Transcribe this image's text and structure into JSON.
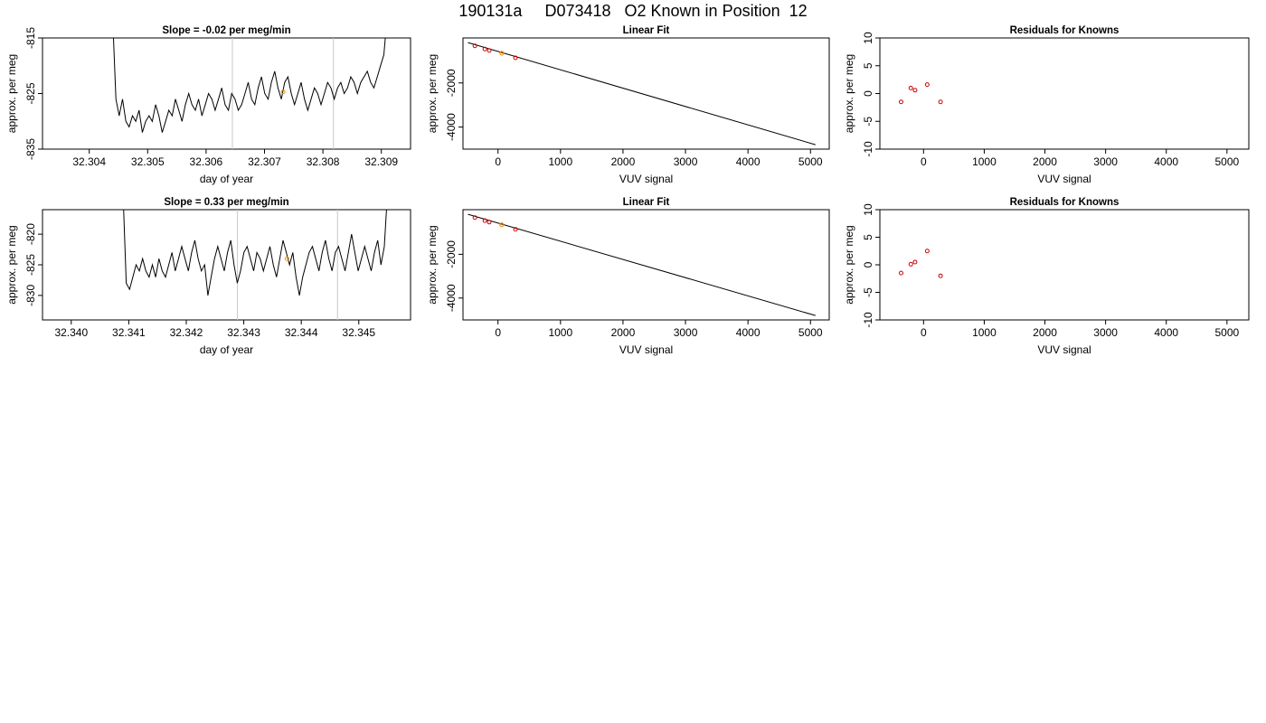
{
  "page": {
    "title": "190131a     D073418   O2 Known in Position  12"
  },
  "chart_data": [
    {
      "type": "line",
      "title": "Slope =  -0.02  per meg/min",
      "xlabel": "day of year",
      "ylabel": "approx. per meg",
      "xlim": [
        32.3032,
        32.3095
      ],
      "ylim": [
        -835,
        -815
      ],
      "xticks": [
        32.304,
        32.305,
        32.306,
        32.307,
        32.308,
        32.309
      ],
      "xtick_labels": [
        "32.304",
        "32.305",
        "32.306",
        "32.307",
        "32.308",
        "32.309"
      ],
      "yticks": [
        -815,
        -825,
        -835
      ],
      "ytick_labels": [
        "-815",
        "-825",
        "-835"
      ],
      "grid": false,
      "vlines": [
        32.30645,
        32.30818
      ],
      "series": [
        {
          "trace_start": 32.3044,
          "trace_end": 32.3091,
          "values": [
            -811,
            -826,
            -829,
            -826,
            -830,
            -831,
            -829,
            -830,
            -828,
            -832,
            -830,
            -829,
            -830,
            -827,
            -829,
            -832,
            -830,
            -828,
            -829,
            -826,
            -828,
            -830,
            -827,
            -825,
            -827,
            -828,
            -826,
            -829,
            -827,
            -825,
            -826,
            -828,
            -826,
            -824,
            -827,
            -828,
            -825,
            -826,
            -828,
            -827,
            -825,
            -823,
            -826,
            -827,
            -824,
            -822,
            -825,
            -826,
            -823,
            -821,
            -824,
            -826,
            -823,
            -822,
            -825,
            -827,
            -825,
            -823,
            -826,
            -828,
            -826,
            -824,
            -825,
            -827,
            -825,
            -823,
            -824,
            -826,
            -824,
            -823,
            -825,
            -824,
            -822,
            -823,
            -825,
            -823,
            -822,
            -821,
            -823,
            -824,
            -822,
            -820,
            -818,
            -811
          ]
        }
      ],
      "marker": {
        "x": 32.30732,
        "y": -824.7,
        "color": "#ff8c00"
      }
    },
    {
      "type": "scatter",
      "title": "Linear Fit",
      "xlabel": "VUV signal",
      "ylabel": "approx. per meg",
      "xlim": [
        -560,
        5300
      ],
      "ylim": [
        -5000,
        40
      ],
      "xticks": [
        0,
        1000,
        2000,
        3000,
        4000,
        5000
      ],
      "xtick_labels": [
        "0",
        "1000",
        "2000",
        "3000",
        "4000",
        "5000"
      ],
      "yticks": [
        -2000,
        -4000
      ],
      "ytick_labels": [
        "-2000",
        "-4000"
      ],
      "grid": false,
      "fit_line": [
        {
          "x": -480,
          "y": -170
        },
        {
          "x": 5080,
          "y": -4800
        }
      ],
      "series": [
        {
          "x": [
            -370,
            -210,
            -140,
            280
          ],
          "y": [
            -320,
            -460,
            -530,
            -860
          ],
          "color": "#cc0000"
        }
      ],
      "highlight": {
        "x": 60,
        "y": -650,
        "color": "#ff8c00"
      }
    },
    {
      "type": "scatter",
      "title": "Residuals for Knowns",
      "xlabel": "VUV signal",
      "ylabel": "approx. per meg",
      "xlim": [
        -720,
        5360
      ],
      "ylim": [
        -10,
        10
      ],
      "xticks": [
        0,
        1000,
        2000,
        3000,
        4000,
        5000
      ],
      "xtick_labels": [
        "0",
        "1000",
        "2000",
        "3000",
        "4000",
        "5000"
      ],
      "yticks": [
        10,
        5,
        0,
        -5,
        -10
      ],
      "ytick_labels": [
        "10",
        "5",
        "0",
        "-5",
        "-10"
      ],
      "grid": false,
      "series": [
        {
          "x": [
            -370,
            -210,
            -140,
            60,
            280
          ],
          "y": [
            -1.5,
            1.0,
            0.6,
            1.6,
            -1.5
          ],
          "color": "#cc0000"
        }
      ]
    },
    {
      "type": "line",
      "title": "Slope =  0.33  per meg/min",
      "xlabel": "day of year",
      "ylabel": "approx. per meg",
      "xlim": [
        32.3395,
        32.3459
      ],
      "ylim": [
        -834,
        -816
      ],
      "xticks": [
        32.34,
        32.341,
        32.342,
        32.343,
        32.344,
        32.345
      ],
      "xtick_labels": [
        "32.340",
        "32.341",
        "32.342",
        "32.343",
        "32.344",
        "32.345"
      ],
      "yticks": [
        -820,
        -825,
        -830
      ],
      "ytick_labels": [
        "-820",
        "-825",
        "-830"
      ],
      "grid": false,
      "vlines": [
        32.34289,
        32.34463
      ],
      "series": [
        {
          "trace_start": 32.3409,
          "trace_end": 32.3455,
          "values": [
            -813,
            -828,
            -829,
            -827,
            -825,
            -826,
            -824,
            -826,
            -827,
            -825,
            -827,
            -824,
            -826,
            -827,
            -825,
            -823,
            -826,
            -824,
            -822,
            -824,
            -826,
            -823,
            -821,
            -824,
            -826,
            -825,
            -830,
            -827,
            -824,
            -822,
            -824,
            -826,
            -823,
            -821,
            -825,
            -828,
            -826,
            -823,
            -822,
            -824,
            -826,
            -823,
            -824,
            -826,
            -824,
            -822,
            -825,
            -827,
            -824,
            -821,
            -823,
            -825,
            -823,
            -827,
            -830,
            -827,
            -825,
            -823,
            -822,
            -824,
            -826,
            -823,
            -821,
            -824,
            -826,
            -823,
            -822,
            -824,
            -826,
            -823,
            -820,
            -823,
            -826,
            -824,
            -822,
            -824,
            -826,
            -823,
            -821,
            -825,
            -822,
            -813
          ]
        }
      ],
      "marker": {
        "x": 32.34375,
        "y": -824.0,
        "color": "#ff8c00"
      }
    },
    {
      "type": "scatter",
      "title": "Linear Fit",
      "xlabel": "VUV signal",
      "ylabel": "approx. per meg",
      "xlim": [
        -560,
        5300
      ],
      "ylim": [
        -5000,
        40
      ],
      "xticks": [
        0,
        1000,
        2000,
        3000,
        4000,
        5000
      ],
      "xtick_labels": [
        "0",
        "1000",
        "2000",
        "3000",
        "4000",
        "5000"
      ],
      "yticks": [
        -2000,
        -4000
      ],
      "ytick_labels": [
        "-2000",
        "-4000"
      ],
      "grid": false,
      "fit_line": [
        {
          "x": -480,
          "y": -170
        },
        {
          "x": 5080,
          "y": -4800
        }
      ],
      "series": [
        {
          "x": [
            -370,
            -210,
            -140,
            280
          ],
          "y": [
            -320,
            -460,
            -530,
            -860
          ],
          "color": "#cc0000"
        }
      ],
      "highlight": {
        "x": 60,
        "y": -650,
        "color": "#ff8c00"
      }
    },
    {
      "type": "scatter",
      "title": "Residuals for Knowns",
      "xlabel": "VUV signal",
      "ylabel": "approx. per meg",
      "xlim": [
        -720,
        5360
      ],
      "ylim": [
        -10,
        10
      ],
      "xticks": [
        0,
        1000,
        2000,
        3000,
        4000,
        5000
      ],
      "xtick_labels": [
        "0",
        "1000",
        "2000",
        "3000",
        "4000",
        "5000"
      ],
      "yticks": [
        10,
        5,
        0,
        -5,
        -10
      ],
      "ytick_labels": [
        "10",
        "5",
        "0",
        "-5",
        "-10"
      ],
      "grid": false,
      "series": [
        {
          "x": [
            -370,
            -210,
            -140,
            60,
            280
          ],
          "y": [
            -1.5,
            0.1,
            0.5,
            2.5,
            -2.0
          ],
          "color": "#cc0000"
        }
      ]
    }
  ]
}
